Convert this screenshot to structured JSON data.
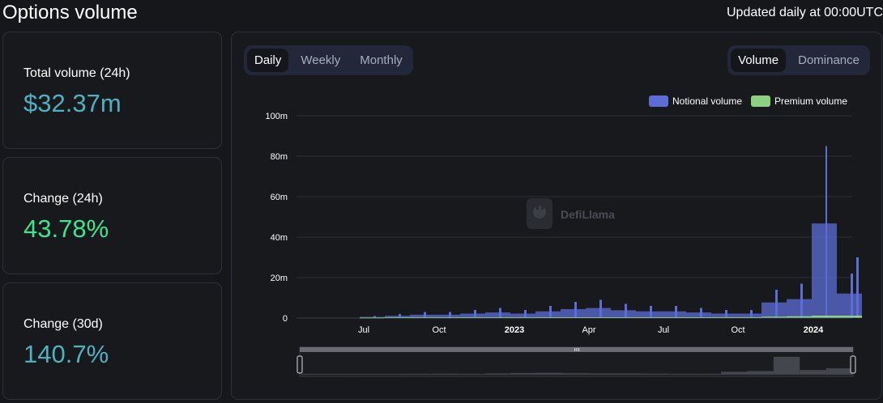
{
  "header": {
    "title": "Options volume",
    "updated_note": "Updated daily at 00:00UTC"
  },
  "stats": [
    {
      "label": "Total volume (24h)",
      "value": "$32.37m",
      "color": "#4fb0c0"
    },
    {
      "label": "Change (24h)",
      "value": "43.78%",
      "color": "#3ce68e"
    },
    {
      "label": "Change (30d)",
      "value": "140.7%",
      "color": "#4fb0c0"
    }
  ],
  "period_tabs": [
    "Daily",
    "Weekly",
    "Monthly"
  ],
  "active_period": "Daily",
  "view_tabs": [
    "Volume",
    "Dominance"
  ],
  "active_view": "Volume",
  "watermark": "DefiLlama",
  "colors": {
    "notional": "#5c6ed6",
    "premium": "#8ed081",
    "background": "#16171b",
    "panel": "#18191d",
    "grid": "#2c2f36"
  },
  "chart_data": {
    "type": "bar",
    "title": "",
    "xlabel": "",
    "ylabel": "",
    "ylim": [
      0,
      100
    ],
    "y_unit": "m",
    "y_ticks": [
      "0",
      "20m",
      "40m",
      "60m",
      "80m",
      "100m"
    ],
    "x_ticks": [
      "Jul",
      "Oct",
      "2023",
      "Apr",
      "Jul",
      "Oct",
      "2024"
    ],
    "x_tick_bold": [
      false,
      false,
      true,
      false,
      false,
      false,
      true
    ],
    "legend": {
      "position": "top-right"
    },
    "grid": true,
    "x": [
      "2022-06",
      "2022-07",
      "2022-08",
      "2022-09",
      "2022-10",
      "2022-11",
      "2022-12",
      "2023-01",
      "2023-02",
      "2023-03",
      "2023-04",
      "2023-05",
      "2023-06",
      "2023-07",
      "2023-08",
      "2023-09",
      "2023-10",
      "2023-11",
      "2023-12",
      "2024-01",
      "2024-02"
    ],
    "series": [
      {
        "name": "Notional volume",
        "values": [
          1,
          2,
          3,
          3,
          4,
          5,
          4,
          6,
          8,
          9,
          7,
          6,
          6,
          5,
          4,
          4,
          14,
          17,
          85,
          22,
          30
        ]
      },
      {
        "name": "Premium volume",
        "values": [
          0,
          0.1,
          0.1,
          0.1,
          0.1,
          0.1,
          0.1,
          0.2,
          0.2,
          0.2,
          0.2,
          0.2,
          0.2,
          0.2,
          0.2,
          0.2,
          0.5,
          0.7,
          1,
          1,
          1
        ]
      }
    ]
  }
}
